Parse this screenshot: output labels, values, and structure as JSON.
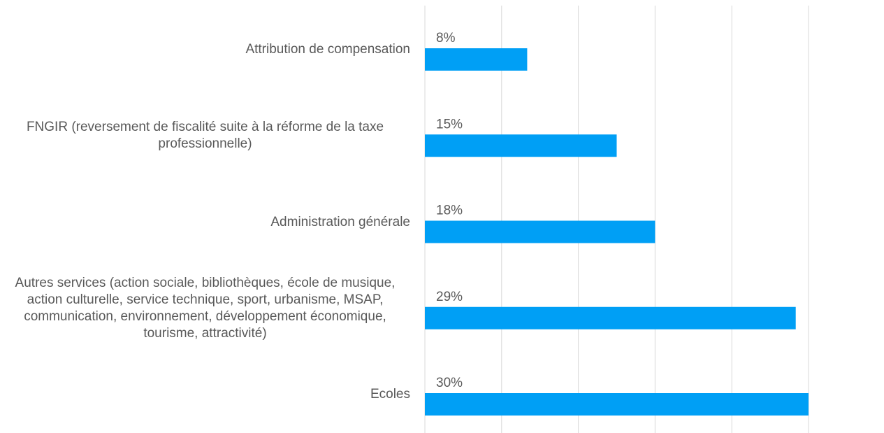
{
  "chart_data": {
    "type": "barh",
    "categories": [
      "Attribution de compensation",
      "FNGIR (reversement de fiscalité suite à la réforme de la taxe professionnelle)",
      "Administration générale",
      "Autres services (action sociale, bibliothèques, école de musique, action culturelle, service technique, sport, urbanisme, MSAP, communication, environnement, développement économique, tourisme, attractivité)",
      "Ecoles"
    ],
    "values": [
      8,
      15,
      18,
      29,
      30
    ],
    "value_labels": [
      "8%",
      "15%",
      "18%",
      "29%",
      "30%"
    ],
    "color": "#009ff5",
    "xlim": [
      0,
      30
    ],
    "xticks": [
      0,
      6,
      12,
      18,
      24,
      30
    ],
    "grid": true
  }
}
